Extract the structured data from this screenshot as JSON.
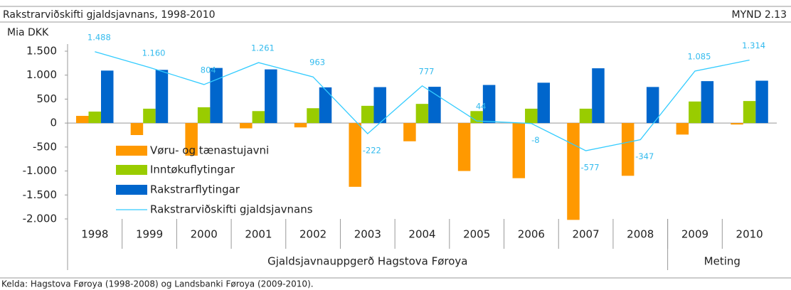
{
  "chart_data": {
    "type": "bar",
    "title": "Rakstrarviðskifti gjaldsjavnans, 1998-2010",
    "figure_label": "MYND 2.13",
    "y_label": "Mia DKK",
    "source": "Kelda: Hagstova Føroya (1998-2008) og Landsbanki Føroya (2009-2010).",
    "categories": [
      "1998",
      "1999",
      "2000",
      "2001",
      "2002",
      "2003",
      "2004",
      "2005",
      "2006",
      "2007",
      "2008",
      "2009",
      "2010"
    ],
    "category_groups": [
      {
        "label": "Gjaldsjavnauppgerð Hagstova Føroya",
        "count": 11
      },
      {
        "label": "Meting",
        "count": 2
      }
    ],
    "series": [
      {
        "name": "Vøru- og tænastujavni",
        "type": "bar",
        "color": "#ff9900",
        "values": [
          150,
          -250,
          -680,
          -110,
          -90,
          -1330,
          -380,
          -1000,
          -1150,
          -2020,
          -1100,
          -240,
          -30
        ]
      },
      {
        "name": "Inntøkuflytingar",
        "type": "bar",
        "color": "#99cc00",
        "values": [
          240,
          300,
          330,
          250,
          310,
          360,
          400,
          250,
          300,
          300,
          0,
          450,
          460
        ]
      },
      {
        "name": "Rakstrarflytingar",
        "type": "bar",
        "color": "#0066cc",
        "values": [
          1095,
          1110,
          1150,
          1120,
          745,
          750,
          757,
          795,
          842,
          1143,
          753,
          875,
          884
        ]
      },
      {
        "name": "Rakstrarviðskifti gjaldsjavnans",
        "type": "line",
        "color": "#33ccff",
        "values": [
          1488,
          1160,
          804,
          1261,
          963,
          -222,
          777,
          44,
          -8,
          -577,
          -347,
          1085,
          1314
        ],
        "value_labels": [
          "1.488",
          "1.160",
          "804",
          "1.261",
          "963",
          "-222",
          "777",
          "44",
          "-8",
          "-577",
          "-347",
          "1.085",
          "1.314"
        ]
      }
    ],
    "ylim": [
      -2000,
      1500
    ],
    "yticks": [
      {
        "value": 1500,
        "label": "1.500"
      },
      {
        "value": 1000,
        "label": "1.000"
      },
      500,
      0,
      -500,
      {
        "value": -1000,
        "label": "-1.000"
      },
      {
        "value": -1500,
        "label": "-1.500"
      },
      {
        "value": -2000,
        "label": "-2.000"
      }
    ],
    "legend": "left"
  }
}
